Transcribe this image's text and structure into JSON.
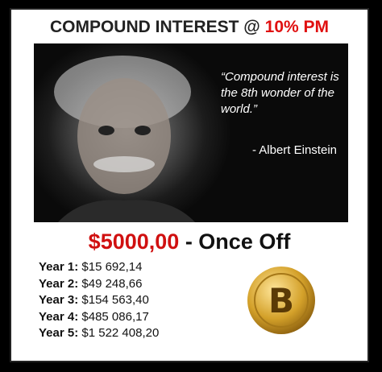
{
  "header": {
    "title": "COMPOUND INTEREST @",
    "rate": "10% PM"
  },
  "quote": {
    "text": "“Compound interest is the 8th wonder of the world.”",
    "author": "- Albert Einstein"
  },
  "offer": {
    "amount": "$5000,00",
    "label": "- Once Off"
  },
  "years": [
    {
      "label": "Year 1:",
      "value": "$15 692,14"
    },
    {
      "label": "Year 2:",
      "value": "$49 248,66"
    },
    {
      "label": "Year 3:",
      "value": "$154 563,40"
    },
    {
      "label": "Year 4:",
      "value": "$485 086,17"
    },
    {
      "label": "Year 5:",
      "value": "$1 522 408,20"
    }
  ]
}
